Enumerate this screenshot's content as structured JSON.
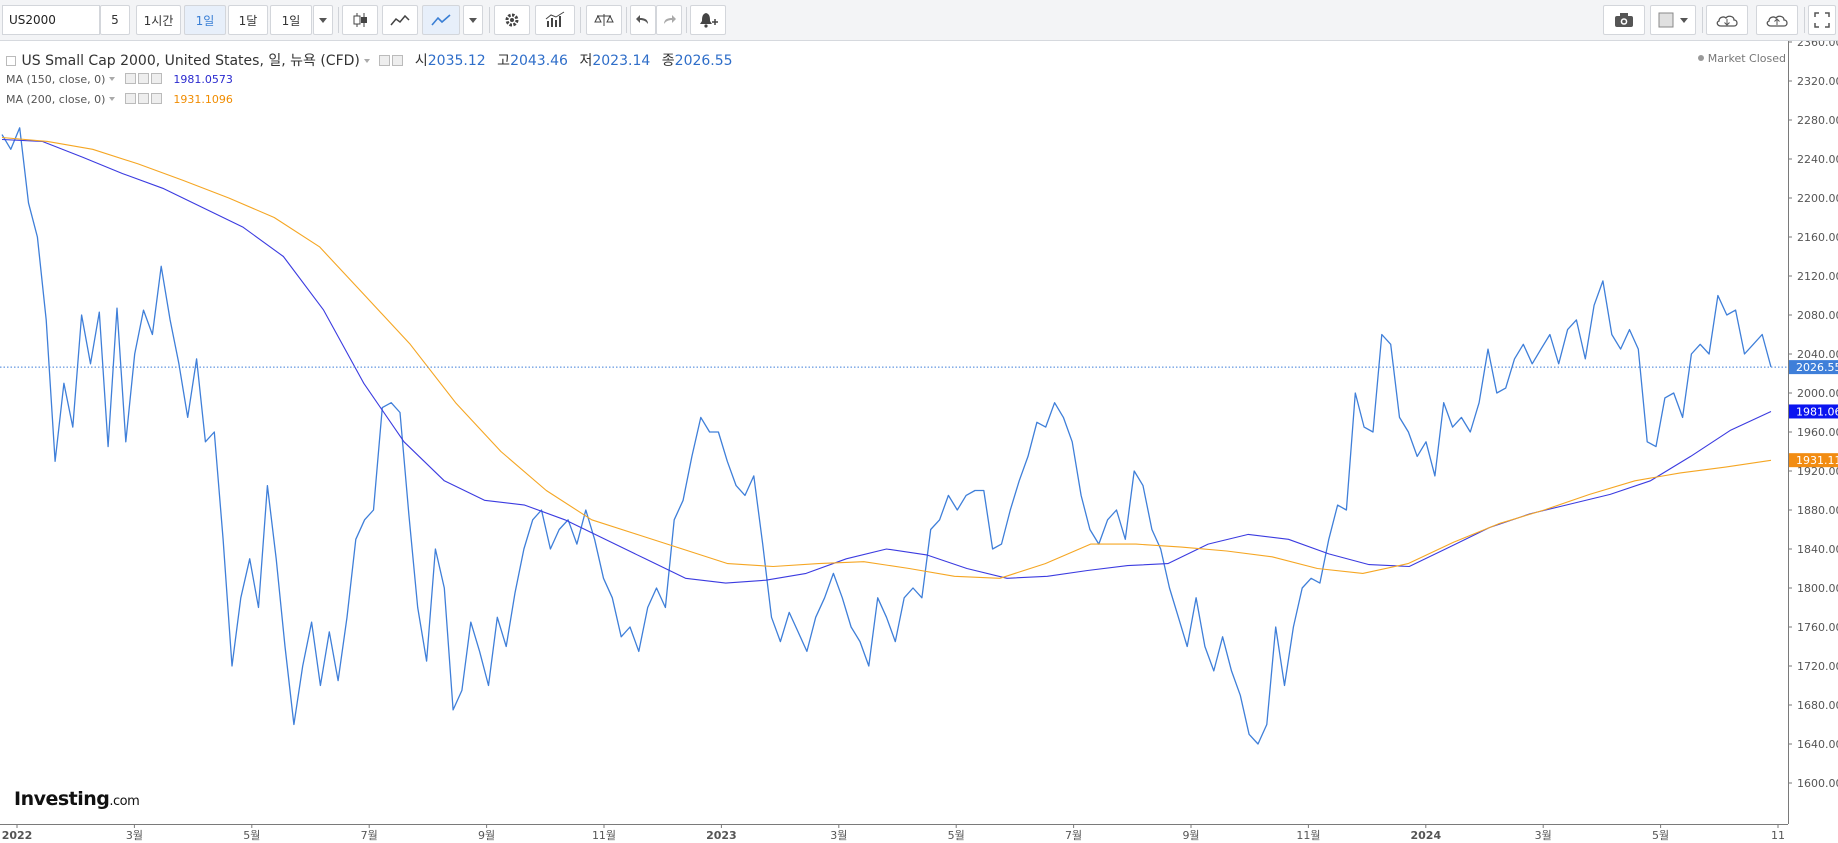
{
  "toolbar": {
    "symbol": "US2000",
    "intervals": [
      "5",
      "1시간",
      "1일",
      "1달",
      "1일"
    ],
    "active_interval_index": 2
  },
  "legend": {
    "title": "US Small Cap 2000, United States, 일, 뉴욕 (CFD)",
    "open_label": "시",
    "open": "2035.12",
    "high_label": "고",
    "high": "2043.46",
    "low_label": "저",
    "low": "2023.14",
    "close_label": "종",
    "close": "2026.55",
    "ma150_label": "MA (150, close, 0)",
    "ma150_value": "1981.0573",
    "ma200_label": "MA (200, close, 0)",
    "ma200_value": "1931.1096"
  },
  "market_status": "Market Closed",
  "logo": {
    "main": "Investing",
    "suffix": ".com"
  },
  "colors": {
    "price": "#3f7fd9",
    "ma150": "#3b3be0",
    "ma200": "#f5a623",
    "last_badge": "#3f7fd9",
    "ma150_badge": "#0a14f0",
    "ma200_badge": "#f28c12"
  },
  "chart_data": {
    "type": "line",
    "ylim": [
      1600,
      2360
    ],
    "y_ticks": [
      "1600.00",
      "1640.00",
      "1680.00",
      "1720.00",
      "1760.00",
      "1800.00",
      "1840.00",
      "1880.00",
      "1920.00",
      "1960.00",
      "2000.00",
      "2040.00",
      "2080.00",
      "2120.00",
      "2160.00",
      "2200.00",
      "2240.00",
      "2280.00",
      "2320.00",
      "2360.00"
    ],
    "x_ticks": [
      "2022",
      "3월",
      "5월",
      "7월",
      "9월",
      "11월",
      "2023",
      "3월",
      "5월",
      "7월",
      "9월",
      "11월",
      "2024",
      "3월",
      "5월",
      "11"
    ],
    "last_price_label": "2026.55",
    "ma150_label": "1981.06",
    "ma200_label": "1931.11",
    "series": [
      {
        "key": "price",
        "values": [
          2265,
          2250,
          2272,
          2195,
          2160,
          2075,
          1930,
          2010,
          1965,
          2080,
          2030,
          2083,
          1945,
          2087,
          1950,
          2040,
          2085,
          2060,
          2130,
          2075,
          2030,
          1975,
          2035,
          1950,
          1960,
          1850,
          1720,
          1790,
          1830,
          1780,
          1905,
          1830,
          1740,
          1660,
          1720,
          1765,
          1700,
          1755,
          1705,
          1770,
          1850,
          1870,
          1880,
          1985,
          1990,
          1980,
          1875,
          1780,
          1725,
          1840,
          1800,
          1675,
          1695,
          1765,
          1735,
          1700,
          1770,
          1740,
          1795,
          1840,
          1870,
          1880,
          1840,
          1860,
          1870,
          1845,
          1880,
          1850,
          1810,
          1790,
          1750,
          1760,
          1735,
          1780,
          1800,
          1780,
          1870,
          1890,
          1935,
          1975,
          1960,
          1960,
          1930,
          1905,
          1895,
          1915,
          1845,
          1770,
          1745,
          1775,
          1755,
          1735,
          1770,
          1790,
          1815,
          1790,
          1760,
          1745,
          1720,
          1790,
          1770,
          1745,
          1790,
          1800,
          1790,
          1860,
          1870,
          1895,
          1880,
          1895,
          1900,
          1900,
          1840,
          1845,
          1880,
          1910,
          1935,
          1970,
          1965,
          1990,
          1975,
          1950,
          1895,
          1860,
          1845,
          1870,
          1880,
          1850,
          1920,
          1905,
          1860,
          1840,
          1800,
          1770,
          1740,
          1790,
          1740,
          1715,
          1750,
          1715,
          1690,
          1650,
          1640,
          1660,
          1760,
          1700,
          1760,
          1800,
          1810,
          1805,
          1850,
          1885,
          1880,
          2000,
          1965,
          1960,
          2060,
          2050,
          1975,
          1960,
          1935,
          1950,
          1915,
          1990,
          1965,
          1975,
          1960,
          1990,
          2045,
          2000,
          2005,
          2035,
          2050,
          2030,
          2045,
          2060,
          2030,
          2065,
          2075,
          2035,
          2090,
          2115,
          2060,
          2045,
          2065,
          2045,
          1950,
          1945,
          1995,
          2000,
          1975,
          2040,
          2050,
          2040,
          2100,
          2080,
          2085,
          2040,
          2050,
          2060,
          2026.55
        ]
      },
      {
        "key": "ma150",
        "values": [
          2260,
          2258,
          2242,
          2225,
          2210,
          2190,
          2170,
          2140,
          2085,
          2010,
          1950,
          1910,
          1890,
          1885,
          1870,
          1850,
          1830,
          1810,
          1805,
          1808,
          1815,
          1830,
          1840,
          1834,
          1820,
          1810,
          1812,
          1818,
          1823,
          1825,
          1845,
          1855,
          1850,
          1835,
          1824,
          1822,
          1842,
          1862,
          1876,
          1886,
          1896,
          1910,
          1935,
          1962,
          1981
        ]
      },
      {
        "key": "ma200",
        "values": [
          2262,
          2258,
          2250,
          2235,
          2218,
          2200,
          2180,
          2150,
          2100,
          2050,
          1990,
          1940,
          1900,
          1870,
          1855,
          1840,
          1825,
          1822,
          1825,
          1827,
          1820,
          1812,
          1810,
          1825,
          1845,
          1845,
          1842,
          1838,
          1832,
          1820,
          1815,
          1825,
          1847,
          1866,
          1880,
          1896,
          1910,
          1918,
          1924,
          1931
        ]
      }
    ]
  }
}
